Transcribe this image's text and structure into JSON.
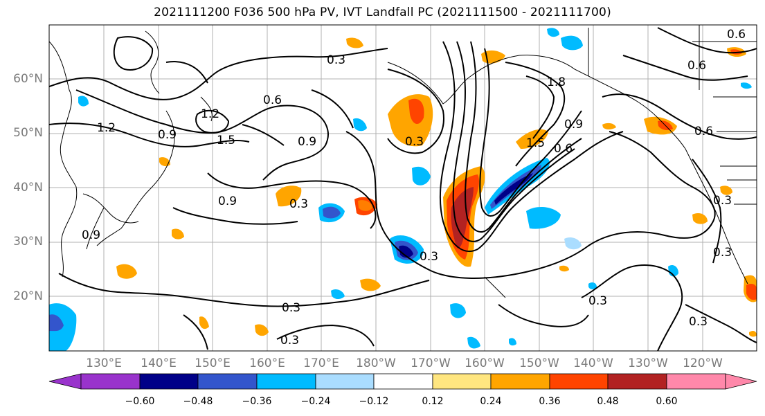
{
  "title": "2021111200 F036 500 hPa PV, IVT Landfall PC (2021111500 - 2021111700)",
  "lat_labels": [
    "60°N",
    "50°N",
    "40°N",
    "30°N",
    "20°N"
  ],
  "lon_labels": [
    "130°E",
    "140°E",
    "150°E",
    "160°E",
    "170°E",
    "180°W",
    "170°W",
    "160°W",
    "150°W",
    "140°W",
    "130°W",
    "120°W"
  ],
  "contour_labels": [
    "0.3",
    "0.3",
    "0.3",
    "0.3",
    "0.3",
    "0.3",
    "0.3",
    "0.3",
    "0.3",
    "0.3",
    "0.6",
    "0.6",
    "0.6",
    "0.6",
    "0.6",
    "0.9",
    "0.9",
    "0.9",
    "0.9",
    "0.9",
    "1.2",
    "1.2",
    "1.5",
    "1.5",
    "1.8"
  ],
  "colorbar": {
    "tick_labels": [
      "−0.60",
      "−0.48",
      "−0.36",
      "−0.24",
      "−0.12",
      "0.12",
      "0.24",
      "0.36",
      "0.48",
      "0.60"
    ],
    "colors": [
      "#9933cc",
      "#000088",
      "#3355cc",
      "#00bbff",
      "#aaddff",
      "#ffffff",
      "#ffe680",
      "#ffa500",
      "#ff4400",
      "#b22222",
      "#ff88aa"
    ]
  },
  "map": {
    "lat_range": [
      10,
      70
    ],
    "lon_range_east": [
      120,
      250
    ],
    "gridlines": true
  }
}
